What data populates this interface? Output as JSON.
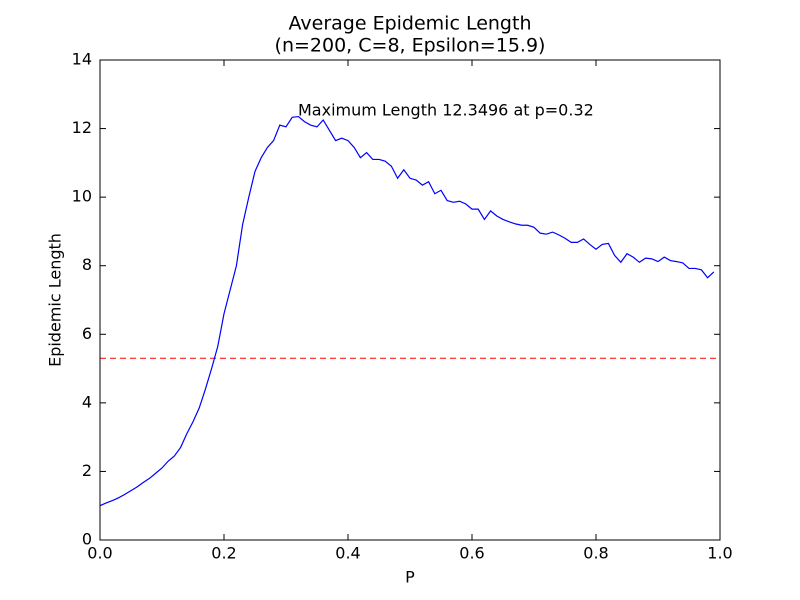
{
  "chart_data": {
    "type": "line",
    "title": "Average Epidemic Length",
    "subtitle": "(n=200, C=8, Epsilon=15.9)",
    "x_label": "P",
    "y_label": "Epidemic Length",
    "annotation": "Maximum Length 12.3496 at p=0.32",
    "x": [
      0,
      0.01,
      0.02,
      0.03,
      0.04,
      0.05,
      0.06,
      0.07,
      0.08,
      0.09,
      0.1,
      0.11,
      0.12,
      0.13,
      0.14,
      0.15,
      0.16,
      0.17,
      0.18,
      0.19,
      0.2,
      0.21,
      0.22,
      0.23,
      0.24,
      0.25,
      0.26,
      0.27,
      0.28,
      0.29,
      0.3,
      0.31,
      0.32,
      0.33,
      0.34,
      0.35,
      0.36,
      0.37,
      0.38,
      0.39,
      0.4,
      0.41,
      0.42,
      0.43,
      0.44,
      0.45,
      0.46,
      0.47,
      0.48,
      0.49,
      0.5,
      0.51,
      0.52,
      0.53,
      0.54,
      0.55,
      0.56,
      0.57,
      0.58,
      0.59,
      0.6,
      0.61,
      0.62,
      0.63,
      0.64,
      0.65,
      0.66,
      0.67,
      0.68,
      0.69,
      0.7,
      0.71,
      0.72,
      0.73,
      0.74,
      0.75,
      0.76,
      0.77,
      0.78,
      0.79,
      0.8,
      0.81,
      0.82,
      0.83,
      0.84,
      0.85,
      0.86,
      0.87,
      0.88,
      0.89,
      0.9,
      0.91,
      0.92,
      0.93,
      0.94,
      0.95,
      0.96,
      0.97,
      0.98,
      0.99
    ],
    "series": [
      {
        "color": "#0000ff",
        "values": [
          1.0,
          1.08,
          1.15,
          1.23,
          1.33,
          1.44,
          1.55,
          1.68,
          1.8,
          1.95,
          2.1,
          2.3,
          2.45,
          2.7,
          3.1,
          3.45,
          3.85,
          4.4,
          5.0,
          5.65,
          6.6,
          7.3,
          8.0,
          9.2,
          10.0,
          10.75,
          11.15,
          11.45,
          11.65,
          12.1,
          12.05,
          12.33,
          12.3496,
          12.2,
          12.1,
          12.05,
          12.25,
          11.95,
          11.65,
          11.72,
          11.65,
          11.45,
          11.15,
          11.3,
          11.1,
          11.1,
          11.05,
          10.9,
          10.55,
          10.8,
          10.55,
          10.5,
          10.35,
          10.45,
          10.1,
          10.2,
          9.9,
          9.85,
          9.88,
          9.8,
          9.65,
          9.65,
          9.35,
          9.6,
          9.45,
          9.35,
          9.28,
          9.22,
          9.18,
          9.18,
          9.12,
          8.95,
          8.92,
          8.98,
          8.9,
          8.8,
          8.68,
          8.68,
          8.78,
          8.62,
          8.48,
          8.62,
          8.65,
          8.3,
          8.1,
          8.35,
          8.25,
          8.1,
          8.22,
          8.2,
          8.12,
          8.25,
          8.15,
          8.12,
          8.08,
          7.92,
          7.92,
          7.88,
          7.65,
          7.82
        ]
      }
    ],
    "reference_line": {
      "value": 5.3,
      "color": "#ff0000"
    },
    "xlim": [
      0,
      1
    ],
    "xticks": [
      {
        "value": 0,
        "label": "0.0"
      },
      0.2,
      0.4,
      0.6,
      0.8,
      {
        "value": 1,
        "label": "1.0"
      }
    ],
    "ylim": [
      0,
      14
    ],
    "yticks": [
      0,
      2,
      4,
      6,
      8,
      10,
      12,
      14
    ]
  }
}
